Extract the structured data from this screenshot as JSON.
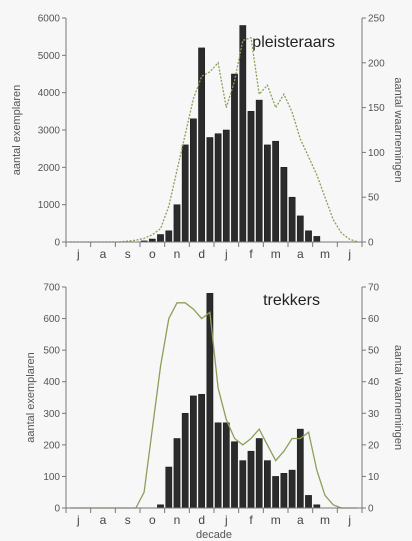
{
  "chart_data": [
    {
      "type": "bar",
      "title": "pleisteraars",
      "ylabel": "aantal exemplaren",
      "y2label": "aantal waarnemingen",
      "ylim": [
        0,
        6000
      ],
      "yticks": [
        0,
        1000,
        2000,
        3000,
        4000,
        5000,
        6000
      ],
      "y2lim": [
        0,
        250
      ],
      "y2ticks": [
        0,
        50,
        100,
        150,
        200,
        250
      ],
      "months": [
        "j",
        "a",
        "s",
        "o",
        "n",
        "d",
        "j",
        "f",
        "m",
        "a",
        "m",
        "j"
      ],
      "bar_color": "#2b2b2b",
      "line_color": "#8aa05a",
      "series": [
        {
          "name": "exemplaren",
          "type": "bar",
          "values": [
            0,
            0,
            0,
            0,
            0,
            0,
            0,
            0,
            0,
            30,
            80,
            200,
            300,
            1000,
            2600,
            3300,
            5200,
            2800,
            2900,
            3000,
            4500,
            5800,
            3500,
            3800,
            2600,
            2700,
            2000,
            1200,
            700,
            300,
            150,
            0,
            0,
            0,
            0,
            0
          ]
        },
        {
          "name": "waarnemingen",
          "type": "line",
          "values": [
            0,
            0,
            0,
            0,
            0,
            0,
            0,
            1,
            2,
            4,
            8,
            15,
            40,
            80,
            120,
            160,
            185,
            190,
            200,
            150,
            180,
            225,
            228,
            165,
            175,
            150,
            165,
            145,
            115,
            95,
            75,
            50,
            25,
            10,
            3,
            0
          ]
        }
      ]
    },
    {
      "type": "bar",
      "title": "trekkers",
      "ylabel": "aantal exemplaren",
      "y2label": "aantal waarnemingen",
      "xlabel": "decade",
      "ylim": [
        0,
        700
      ],
      "yticks": [
        0,
        100,
        200,
        300,
        400,
        500,
        600,
        700
      ],
      "y2lim": [
        0,
        70
      ],
      "y2ticks": [
        0,
        10,
        20,
        30,
        40,
        50,
        60,
        70
      ],
      "months": [
        "j",
        "a",
        "s",
        "o",
        "n",
        "d",
        "j",
        "f",
        "m",
        "a",
        "m",
        "j"
      ],
      "bar_color": "#2b2b2b",
      "line_color": "#8aa05a",
      "series": [
        {
          "name": "exemplaren",
          "type": "bar",
          "values": [
            0,
            0,
            0,
            0,
            0,
            0,
            0,
            0,
            0,
            0,
            0,
            10,
            130,
            220,
            300,
            355,
            360,
            680,
            270,
            270,
            210,
            150,
            180,
            220,
            150,
            100,
            110,
            120,
            250,
            40,
            10,
            0,
            0,
            0,
            0,
            0
          ]
        },
        {
          "name": "waarnemingen",
          "type": "line",
          "values": [
            0,
            0,
            0,
            0,
            0,
            0,
            0,
            0,
            0,
            5,
            25,
            45,
            60,
            65,
            65,
            63,
            60,
            62,
            38,
            28,
            22,
            20,
            22,
            25,
            20,
            15,
            18,
            22,
            22,
            24,
            12,
            4,
            1,
            0,
            0,
            0
          ]
        }
      ]
    }
  ]
}
